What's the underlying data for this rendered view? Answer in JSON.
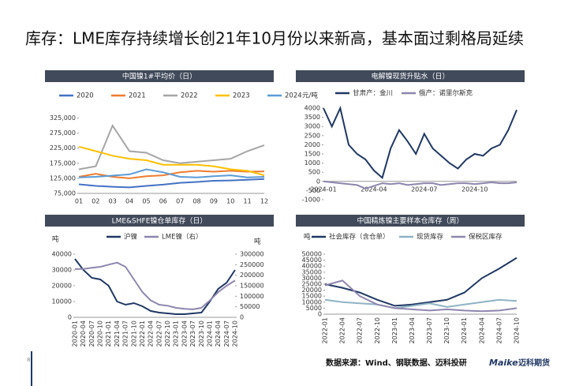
{
  "title": "库存：LME库存持续增长创21年10月份以来新高，基本面过剩格局延续",
  "page_number": "8",
  "source": "数据来源：Wind、钢联数据、迈科投研",
  "logo": {
    "en": "Maike",
    "cn": "迈科期货"
  },
  "chart_data": [
    {
      "type": "line",
      "title": "中国镍1#平均价（日）",
      "categories": [
        "01",
        "02",
        "03",
        "04",
        "05",
        "06",
        "07",
        "08",
        "09",
        "10",
        "11",
        "12"
      ],
      "ylim": [
        75000,
        350000
      ],
      "yticks": [
        {
          "value": 75000,
          "label": "75,000"
        },
        {
          "value": 125000,
          "label": "125,000"
        },
        {
          "value": 175000,
          "label": "175,000"
        },
        {
          "value": 225000,
          "label": "225,000"
        },
        {
          "value": 275000,
          "label": "275,000"
        },
        {
          "value": 325000,
          "label": "325,000"
        }
      ],
      "series": [
        {
          "name": "2020",
          "color": "#4472c4",
          "values": [
            105000,
            100000,
            97000,
            95000,
            100000,
            104000,
            110000,
            113000,
            117000,
            118000,
            120000,
            123000
          ]
        },
        {
          "name": "2021",
          "color": "#ed7d31",
          "values": [
            130000,
            140000,
            130000,
            125000,
            132000,
            135000,
            145000,
            150000,
            147000,
            150000,
            147000,
            148000
          ]
        },
        {
          "name": "2022",
          "color": "#a5a5a5",
          "values": [
            155000,
            165000,
            300000,
            215000,
            210000,
            185000,
            175000,
            180000,
            185000,
            190000,
            215000,
            235000
          ]
        },
        {
          "name": "2023",
          "color": "#ffc000",
          "values": [
            230000,
            215000,
            200000,
            190000,
            185000,
            170000,
            170000,
            170000,
            165000,
            155000,
            150000,
            135000
          ]
        },
        {
          "name": "2024",
          "color": "#5b9bd5",
          "values": [
            128000,
            130000,
            134000,
            138000,
            155000,
            145000,
            130000,
            128000,
            132000,
            135000,
            128000,
            130000
          ]
        }
      ]
    },
    {
      "type": "line",
      "title": "电解镍现货升贴水（日）",
      "ylabel": "元/吨",
      "categories": [
        "2024-01",
        null,
        null,
        null,
        null,
        null,
        "2024-04",
        null,
        null,
        null,
        null,
        null,
        "2024-07",
        null,
        null,
        null,
        null,
        null,
        "2024-10",
        null,
        null,
        null,
        null,
        null
      ],
      "ylim": [
        -1000,
        4000
      ],
      "yticks": [
        -1000,
        -500,
        0,
        500,
        1000,
        1500,
        2000,
        2500,
        3000,
        3500,
        4000
      ],
      "series": [
        {
          "name": "甘肃产：金川",
          "color": "#203864",
          "values": [
            4000,
            3000,
            4000,
            2000,
            1500,
            1200,
            600,
            200,
            1800,
            2800,
            2200,
            1500,
            2600,
            1800,
            1400,
            1000,
            700,
            1200,
            1500,
            1400,
            1800,
            2000,
            2800,
            3900
          ]
        },
        {
          "name": "俄产：诺里尔斯克",
          "color": "#8e86ae",
          "values": [
            0,
            -50,
            -100,
            -150,
            -200,
            -400,
            -250,
            -100,
            -150,
            -100,
            -200,
            -150,
            -100,
            -100,
            -200,
            -150,
            -100,
            -100,
            -150,
            -100,
            -50,
            -100,
            -100,
            -50
          ]
        }
      ]
    },
    {
      "type": "line",
      "title": "LME&SHFE镍仓单库存（日）",
      "ylabel": "吨",
      "y2label": "吨",
      "categories": [
        "2020-01",
        "2020-04",
        "2020-07",
        "2020-10",
        "2021-01",
        "2021-04",
        "2021-07",
        "2021-10",
        "2022-01",
        "2022-04",
        "2022-07",
        "2022-10",
        "2023-01",
        "2023-04",
        "2023-07",
        "2023-10",
        "2024-01",
        "2024-04",
        "2024-07",
        "2024-10"
      ],
      "ylim": [
        0,
        40000
      ],
      "yticks": [
        0,
        10000,
        20000,
        30000,
        40000
      ],
      "y2lim": [
        0,
        300000
      ],
      "y2ticks": [
        0,
        50000,
        100000,
        150000,
        200000,
        250000,
        300000
      ],
      "series": [
        {
          "name": "沪镍",
          "color": "#203864",
          "values": [
            37000,
            30000,
            25000,
            24000,
            20000,
            10000,
            8000,
            9000,
            7000,
            4000,
            3000,
            2500,
            2000,
            2000,
            2500,
            3000,
            10000,
            18000,
            22000,
            30000
          ]
        },
        {
          "name": "LME镍（右）",
          "color": "#8e86ae",
          "axis": "y2",
          "values": [
            230000,
            230000,
            235000,
            240000,
            250000,
            260000,
            240000,
            180000,
            120000,
            80000,
            60000,
            55000,
            45000,
            40000,
            38000,
            45000,
            80000,
            120000,
            150000,
            175000
          ]
        }
      ]
    },
    {
      "type": "line",
      "title": "中国精炼镍主要样本仓库存（周）",
      "ylabel": "吨",
      "categories": [
        "2022-01",
        "2022-04",
        "2022-07",
        "2022-10",
        "2023-01",
        "2023-04",
        "2023-07",
        "2023-10",
        "2024-01",
        "2024-04",
        "2024-07",
        "2024-10"
      ],
      "ylim": [
        0,
        50000
      ],
      "yticks": [
        0,
        5000,
        10000,
        15000,
        20000,
        25000,
        30000,
        35000,
        40000,
        45000,
        50000
      ],
      "series": [
        {
          "name": "社会库存（含仓单）",
          "color": "#203864",
          "values": [
            25000,
            22000,
            18000,
            12000,
            7000,
            8000,
            10000,
            12000,
            18000,
            30000,
            38000,
            47000
          ]
        },
        {
          "name": "现货库存",
          "color": "#8fb3c4",
          "values": [
            12000,
            10000,
            9000,
            8000,
            5000,
            7000,
            9000,
            6000,
            8000,
            10000,
            12000,
            11000
          ]
        },
        {
          "name": "保税区库存",
          "color": "#8e86ae",
          "values": [
            24000,
            28000,
            15000,
            8000,
            5000,
            4000,
            3000,
            4000,
            3000,
            2500,
            3000,
            5000
          ]
        }
      ]
    }
  ]
}
